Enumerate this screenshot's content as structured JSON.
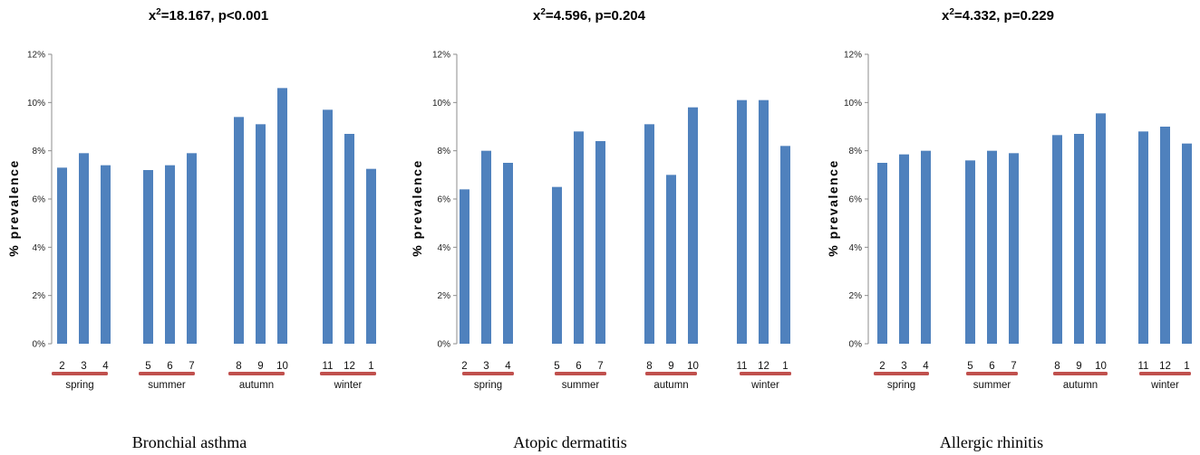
{
  "chart_data": [
    {
      "type": "bar",
      "title": "x²=18.167, p<0.001",
      "title_parts": {
        "pre": "x",
        "sup": "2",
        "post": "=18.167, p<0.001"
      },
      "caption": "Bronchial asthma",
      "ylabel": "% prevalence",
      "ylim": [
        0,
        12
      ],
      "yticks": [
        "0%",
        "2%",
        "4%",
        "6%",
        "8%",
        "10%",
        "12%"
      ],
      "categories": [
        "2",
        "3",
        "4",
        "5",
        "6",
        "7",
        "8",
        "9",
        "10",
        "11",
        "12",
        "1"
      ],
      "values": [
        7.3,
        7.9,
        7.4,
        7.2,
        7.4,
        7.9,
        9.4,
        9.1,
        10.6,
        9.7,
        8.7,
        7.25
      ],
      "groups": [
        {
          "label": "spring",
          "months": [
            "2",
            "3",
            "4"
          ]
        },
        {
          "label": "summer",
          "months": [
            "5",
            "6",
            "7"
          ]
        },
        {
          "label": "autumn",
          "months": [
            "8",
            "9",
            "10"
          ]
        },
        {
          "label": "winter",
          "months": [
            "11",
            "12",
            "1"
          ]
        }
      ],
      "grid": false,
      "bar_color": "#4f81bd",
      "season_bar_color": "#c0504d"
    },
    {
      "type": "bar",
      "title": "x²=4.596, p=0.204",
      "title_parts": {
        "pre": "x",
        "sup": "2",
        "post": "=4.596, p=0.204"
      },
      "caption": "Atopic dermatitis",
      "ylabel": "% prevalence",
      "ylim": [
        0,
        12
      ],
      "yticks": [
        "0%",
        "2%",
        "4%",
        "6%",
        "8%",
        "10%",
        "12%"
      ],
      "categories": [
        "2",
        "3",
        "4",
        "5",
        "6",
        "7",
        "8",
        "9",
        "10",
        "11",
        "12",
        "1"
      ],
      "values": [
        6.4,
        8.0,
        7.5,
        6.5,
        8.8,
        8.4,
        9.1,
        7.0,
        9.8,
        10.1,
        10.1,
        8.2
      ],
      "groups": [
        {
          "label": "spring",
          "months": [
            "2",
            "3",
            "4"
          ]
        },
        {
          "label": "summer",
          "months": [
            "5",
            "6",
            "7"
          ]
        },
        {
          "label": "autumn",
          "months": [
            "8",
            "9",
            "10"
          ]
        },
        {
          "label": "winter",
          "months": [
            "11",
            "12",
            "1"
          ]
        }
      ],
      "grid": false,
      "bar_color": "#4f81bd",
      "season_bar_color": "#c0504d"
    },
    {
      "type": "bar",
      "title": "x²=4.332, p=0.229",
      "title_parts": {
        "pre": "x",
        "sup": "2",
        "post": "=4.332, p=0.229"
      },
      "caption": "Allergic rhinitis",
      "ylabel": "% prevalence",
      "ylim": [
        0,
        12
      ],
      "yticks": [
        "0%",
        "2%",
        "4%",
        "6%",
        "8%",
        "10%",
        "12%"
      ],
      "categories": [
        "2",
        "3",
        "4",
        "5",
        "6",
        "7",
        "8",
        "9",
        "10",
        "11",
        "12",
        "1"
      ],
      "values": [
        7.5,
        7.85,
        8.0,
        7.6,
        8.0,
        7.9,
        8.65,
        8.7,
        9.55,
        8.8,
        9.0,
        8.3
      ],
      "groups": [
        {
          "label": "spring",
          "months": [
            "2",
            "3",
            "4"
          ]
        },
        {
          "label": "summer",
          "months": [
            "5",
            "6",
            "7"
          ]
        },
        {
          "label": "autumn",
          "months": [
            "8",
            "9",
            "10"
          ]
        },
        {
          "label": "winter",
          "months": [
            "11",
            "12",
            "1"
          ]
        }
      ],
      "grid": false,
      "bar_color": "#4f81bd",
      "season_bar_color": "#c0504d"
    }
  ]
}
